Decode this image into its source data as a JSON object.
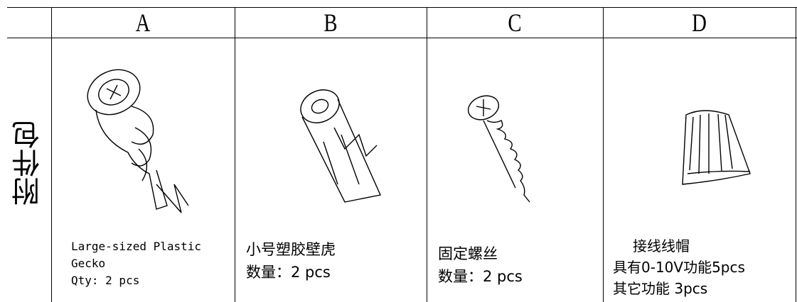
{
  "table": {
    "columns": [
      "A",
      "B",
      "C",
      "D"
    ],
    "row_label": "附件包",
    "cells": [
      {
        "lines": [
          "Large-sized Plastic",
          "Gecko",
          "Qty: 2 pcs"
        ]
      },
      {
        "lines": [
          "小号塑胶壁虎",
          "数量：2 pcs"
        ]
      },
      {
        "lines": [
          "固定螺丝",
          "数量：2 pcs"
        ]
      },
      {
        "lines": [
          "接线线帽",
          "具有0-10V功能5pcs",
          "其它功能 3pcs"
        ]
      }
    ]
  }
}
